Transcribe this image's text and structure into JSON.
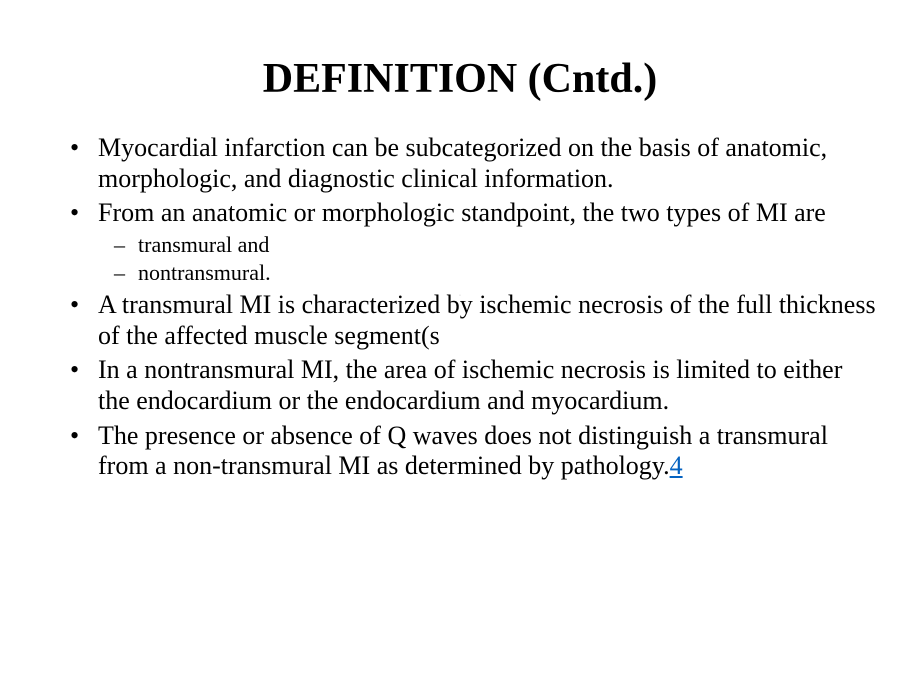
{
  "slide": {
    "title": "DEFINITION (Cntd.)",
    "bullets": {
      "b1": "Myocardial infarction can be subcategorized on the basis of anatomic, morphologic, and diagnostic clinical information.",
      "b2": " From an anatomic or morphologic standpoint, the two types of MI are",
      "b2_sub1": " transmural and",
      "b2_sub2": "  nontransmural.",
      "b3": "A transmural MI is characterized by ischemic necrosis of the full thickness of the affected muscle segment(s",
      "b4": "In a nontransmural MI, the area of ischemic necrosis is limited to either the endocardium or the endocardium and myocardium.",
      "b5_pre": "The presence or absence of Q waves does not distinguish a transmural from a non-transmural MI as determined by pathology.",
      "b5_link": "4"
    },
    "watermark": "."
  }
}
